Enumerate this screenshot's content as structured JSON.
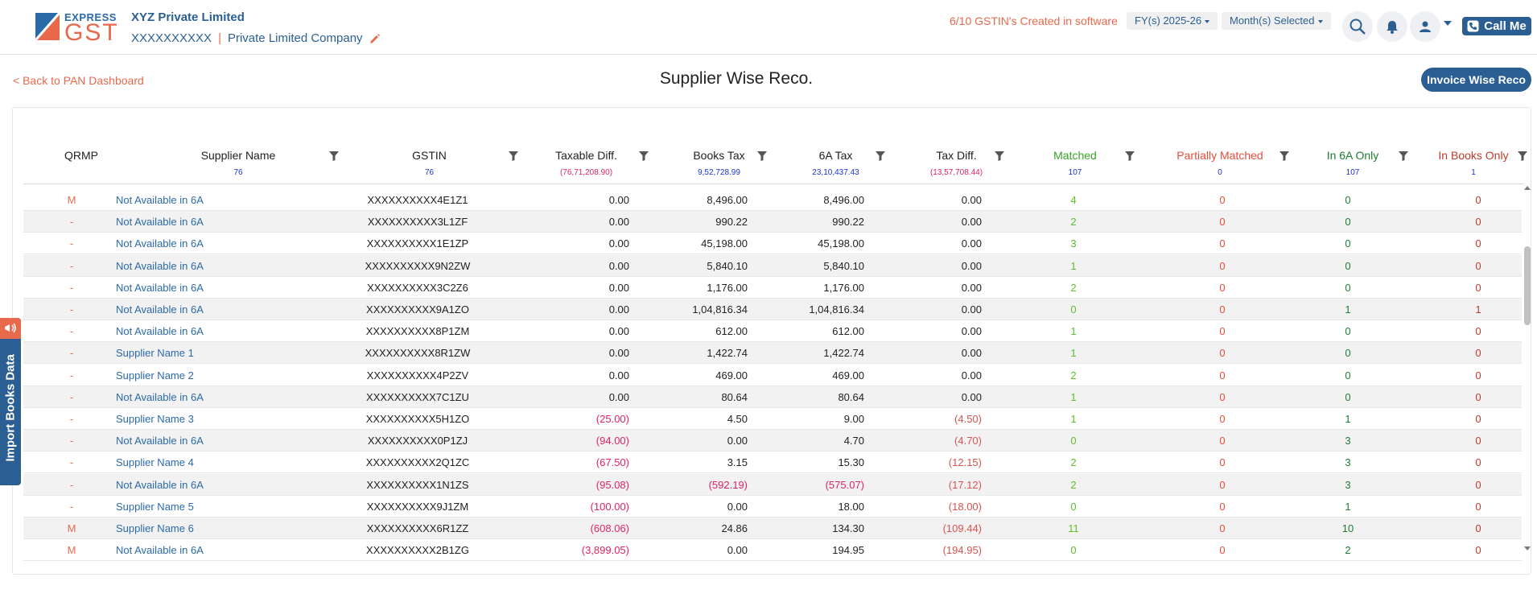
{
  "brand": {
    "logo_top": "EXPRESS",
    "logo_main": "GST"
  },
  "company": {
    "name": "XYZ Private Limited",
    "pan": "XXXXXXXXXX",
    "sep": "|",
    "type": "Private Limited Company"
  },
  "header": {
    "gstin_created": "6/10 GSTIN's Created in software",
    "sep": "|",
    "fy_label": "FY(s) 2025-26",
    "month_label": "Month(s) Selected",
    "call_label": "Call Me"
  },
  "page": {
    "back_label": "< Back to PAN Dashboard",
    "title": "Supplier Wise Reco.",
    "invoice_btn": "Invoice Wise Reco"
  },
  "side_tab": {
    "label": "Import Books Data"
  },
  "columns": {
    "qrmp": {
      "label": "QRMP"
    },
    "supplier": {
      "label": "Supplier Name",
      "sub": "76"
    },
    "gstin": {
      "label": "GSTIN",
      "sub": "76"
    },
    "taxable": {
      "label": "Taxable Diff.",
      "sub": "(76,71,208.90)"
    },
    "books": {
      "label": "Books Tax",
      "sub": "9,52,728.99"
    },
    "sixa": {
      "label": "6A Tax",
      "sub": "23,10,437.43"
    },
    "taxdiff": {
      "label": "Tax Diff.",
      "sub": "(13,57,708.44)"
    },
    "matched": {
      "label": "Matched",
      "sub": "107"
    },
    "partial": {
      "label": "Partially Matched",
      "sub": "0"
    },
    "in6a": {
      "label": "In 6A Only",
      "sub": "107"
    },
    "inbooks": {
      "label": "In Books Only",
      "sub": "1"
    }
  },
  "colors": {
    "brand_blue": "#2b5f93",
    "accent_orange": "#e8694c",
    "matched_green": "#5cbf2a",
    "in6a_green": "#1e7d32",
    "negative_red": "#e0245e"
  },
  "rows": [
    [
      "M",
      "Not Available in 6A",
      "XXXXXXXXXX4E1Z1",
      "0.00",
      "8,496.00",
      "8,496.00",
      "0.00",
      "4",
      "0",
      "0",
      "0"
    ],
    [
      "-",
      "Not Available in 6A",
      "XXXXXXXXXX3L1ZF",
      "0.00",
      "990.22",
      "990.22",
      "0.00",
      "2",
      "0",
      "0",
      "0"
    ],
    [
      "-",
      "Not Available in 6A",
      "XXXXXXXXXX1E1ZP",
      "0.00",
      "45,198.00",
      "45,198.00",
      "0.00",
      "3",
      "0",
      "0",
      "0"
    ],
    [
      "-",
      "Not Available in 6A",
      "XXXXXXXXXX9N2ZW",
      "0.00",
      "5,840.10",
      "5,840.10",
      "0.00",
      "1",
      "0",
      "0",
      "0"
    ],
    [
      "-",
      "Not Available in 6A",
      "XXXXXXXXXX3C2Z6",
      "0.00",
      "1,176.00",
      "1,176.00",
      "0.00",
      "2",
      "0",
      "0",
      "0"
    ],
    [
      "-",
      "Not Available in 6A",
      "XXXXXXXXXX9A1ZO",
      "0.00",
      "1,04,816.34",
      "1,04,816.34",
      "0.00",
      "0",
      "0",
      "1",
      "1"
    ],
    [
      "-",
      "Not Available in 6A",
      "XXXXXXXXXX8P1ZM",
      "0.00",
      "612.00",
      "612.00",
      "0.00",
      "1",
      "0",
      "0",
      "0"
    ],
    [
      "-",
      "Supplier Name 1",
      "XXXXXXXXXX8R1ZW",
      "0.00",
      "1,422.74",
      "1,422.74",
      "0.00",
      "1",
      "0",
      "0",
      "0"
    ],
    [
      "-",
      "Supplier Name 2",
      "XXXXXXXXXX4P2ZV",
      "0.00",
      "469.00",
      "469.00",
      "0.00",
      "2",
      "0",
      "0",
      "0"
    ],
    [
      "-",
      "Not Available in 6A",
      "XXXXXXXXXX7C1ZU",
      "0.00",
      "80.64",
      "80.64",
      "0.00",
      "1",
      "0",
      "0",
      "0"
    ],
    [
      "-",
      "Supplier Name 3",
      "XXXXXXXXXX5H1ZO",
      "(25.00)",
      "4.50",
      "9.00",
      "(4.50)",
      "1",
      "0",
      "1",
      "0"
    ],
    [
      "-",
      "Not Available in 6A",
      "XXXXXXXXXX0P1ZJ",
      "(94.00)",
      "0.00",
      "4.70",
      "(4.70)",
      "0",
      "0",
      "3",
      "0"
    ],
    [
      "-",
      "Supplier Name 4",
      "XXXXXXXXXX2Q1ZC",
      "(67.50)",
      "3.15",
      "15.30",
      "(12.15)",
      "2",
      "0",
      "3",
      "0"
    ],
    [
      "-",
      "Not Available in 6A",
      "XXXXXXXXXX1N1ZS",
      "(95.08)",
      "(592.19)",
      "(575.07)",
      "(17.12)",
      "2",
      "0",
      "3",
      "0"
    ],
    [
      "-",
      "Supplier Name 5",
      "XXXXXXXXXX9J1ZM",
      "(100.00)",
      "0.00",
      "18.00",
      "(18.00)",
      "0",
      "0",
      "1",
      "0"
    ],
    [
      "M",
      "Supplier Name 6",
      "XXXXXXXXXX6R1ZZ",
      "(608.06)",
      "24.86",
      "134.30",
      "(109.44)",
      "11",
      "0",
      "10",
      "0"
    ],
    [
      "M",
      "Not Available in 6A",
      "XXXXXXXXXX2B1ZG",
      "(3,899.05)",
      "0.00",
      "194.95",
      "(194.95)",
      "0",
      "0",
      "2",
      "0"
    ]
  ]
}
